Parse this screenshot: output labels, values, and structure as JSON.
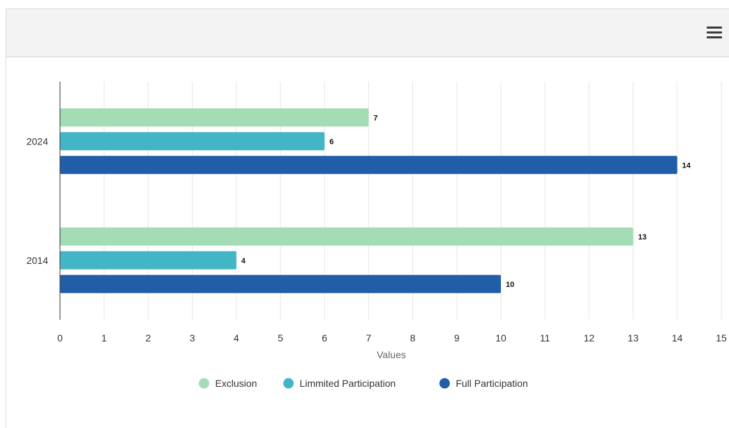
{
  "toolbar": {
    "menu_icon": "hamburger-menu-icon"
  },
  "chart_data": {
    "type": "bar",
    "orientation": "horizontal",
    "categories": [
      "2024",
      "2014"
    ],
    "series": [
      {
        "name": "Exclusion",
        "color": "#a3dcb5",
        "values": [
          7,
          13
        ]
      },
      {
        "name": "Limmited Participation",
        "color": "#42b6c5",
        "values": [
          6,
          4
        ]
      },
      {
        "name": "Full Participation",
        "color": "#225ea8",
        "values": [
          14,
          10
        ]
      }
    ],
    "xlabel": "Values",
    "ylabel": "",
    "xlim": [
      0,
      15
    ],
    "xticks": [
      "0",
      "1",
      "2",
      "3",
      "4",
      "5",
      "6",
      "7",
      "8",
      "9",
      "10",
      "11",
      "12",
      "13",
      "14",
      "15"
    ],
    "grid": true,
    "data_labels": true,
    "legend": "bottom-center"
  }
}
